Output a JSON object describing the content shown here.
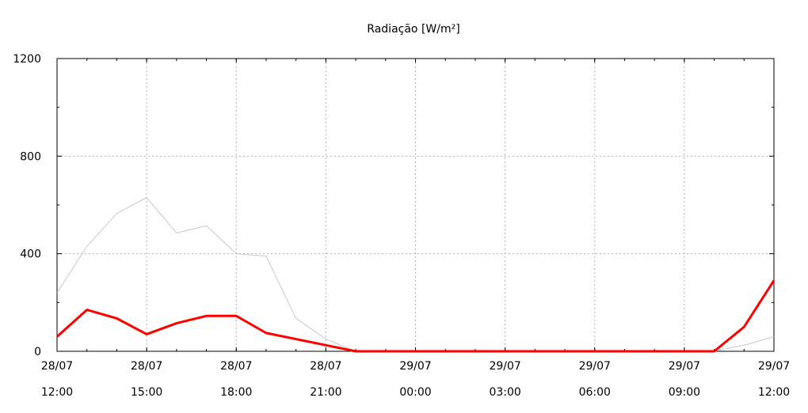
{
  "chart_data": {
    "type": "line",
    "title": "Radiação [W/m²]",
    "xlabel": "",
    "ylabel": "",
    "ylim": [
      0,
      1200
    ],
    "yticks": [
      0,
      400,
      800,
      1200
    ],
    "xlim": [
      "2023-07-28 12:00",
      "2023-07-29 12:00"
    ],
    "xticks": [
      {
        "date": "28/07",
        "time": "12:00"
      },
      {
        "date": "28/07",
        "time": "15:00"
      },
      {
        "date": "28/07",
        "time": "18:00"
      },
      {
        "date": "28/07",
        "time": "21:00"
      },
      {
        "date": "29/07",
        "time": "00:00"
      },
      {
        "date": "29/07",
        "time": "03:00"
      },
      {
        "date": "29/07",
        "time": "06:00"
      },
      {
        "date": "29/07",
        "time": "09:00"
      },
      {
        "date": "29/07",
        "time": "12:00"
      }
    ],
    "grid": true,
    "x": [
      "28/07 12:00",
      "28/07 13:00",
      "28/07 14:00",
      "28/07 15:00",
      "28/07 16:00",
      "28/07 17:00",
      "28/07 18:00",
      "28/07 19:00",
      "28/07 20:00",
      "28/07 21:00",
      "28/07 22:00",
      "28/07 23:00",
      "29/07 00:00",
      "29/07 01:00",
      "29/07 02:00",
      "29/07 03:00",
      "29/07 04:00",
      "29/07 05:00",
      "29/07 06:00",
      "29/07 07:00",
      "29/07 08:00",
      "29/07 09:00",
      "29/07 10:00",
      "29/07 11:00",
      "29/07 12:00"
    ],
    "series": [
      {
        "values": [
          240,
          430,
          565,
          630,
          485,
          515,
          400,
          390,
          135,
          50,
          0,
          0,
          0,
          0,
          0,
          0,
          0,
          0,
          0,
          0,
          0,
          0,
          0,
          25,
          60
        ]
      },
      {
        "values": [
          60,
          170,
          135,
          70,
          115,
          145,
          145,
          75,
          50,
          25,
          0,
          0,
          0,
          0,
          0,
          0,
          0,
          0,
          0,
          0,
          0,
          0,
          0,
          100,
          290
        ]
      }
    ],
    "colors": {
      "series_0": "#c8c8c8",
      "series_1": "#ff0000",
      "grid": "#b0b0b0",
      "axis": "#000000"
    }
  }
}
